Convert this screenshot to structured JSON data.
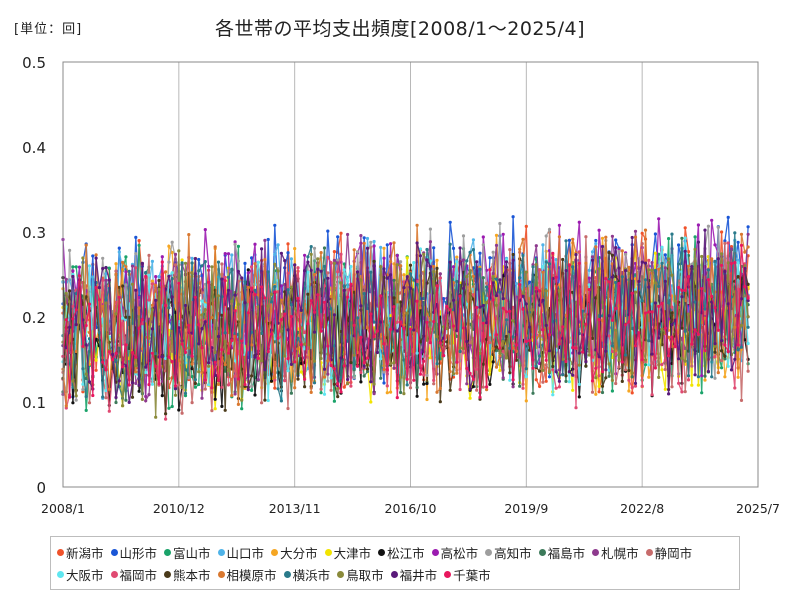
{
  "unit_label": "[単位：回]",
  "chart_data": {
    "type": "line",
    "title": "各世帯の平均支出頻度[2008/1～2025/4]",
    "xlabel": "",
    "ylabel": "",
    "ylim": [
      0,
      0.5
    ],
    "yticks": [
      "0",
      "0.1",
      "0.2",
      "0.3",
      "0.4",
      "0.5"
    ],
    "xticks": [
      "2008/1",
      "2010/12",
      "2013/11",
      "2016/10",
      "2019/9",
      "2022/8",
      "2025/7"
    ],
    "x_start": "2008/1",
    "x_end": "2025/4",
    "grid": "vertical",
    "legend_position": "bottom",
    "series": [
      {
        "name": "新潟市",
        "color": "#f0522a",
        "base": 0.185,
        "spread": 0.08
      },
      {
        "name": "山形市",
        "color": "#1a56d6",
        "base": 0.2,
        "spread": 0.08
      },
      {
        "name": "富山市",
        "color": "#1aa36a",
        "base": 0.18,
        "spread": 0.08
      },
      {
        "name": "山口市",
        "color": "#4fb3e8",
        "base": 0.19,
        "spread": 0.07
      },
      {
        "name": "大分市",
        "color": "#f5a623",
        "base": 0.18,
        "spread": 0.08
      },
      {
        "name": "大津市",
        "color": "#f2e400",
        "base": 0.17,
        "spread": 0.07
      },
      {
        "name": "松江市",
        "color": "#111111",
        "base": 0.16,
        "spread": 0.07
      },
      {
        "name": "高松市",
        "color": "#9b1bb0",
        "base": 0.2,
        "spread": 0.08
      },
      {
        "name": "高知市",
        "color": "#9e9e9e",
        "base": 0.2,
        "spread": 0.08
      },
      {
        "name": "福島市",
        "color": "#3c7a5a",
        "base": 0.18,
        "spread": 0.07
      },
      {
        "name": "札幌市",
        "color": "#8e3a8e",
        "base": 0.19,
        "spread": 0.08
      },
      {
        "name": "静岡市",
        "color": "#c76b6b",
        "base": 0.17,
        "spread": 0.08
      },
      {
        "name": "大阪市",
        "color": "#5ee6f0",
        "base": 0.18,
        "spread": 0.07
      },
      {
        "name": "福岡市",
        "color": "#e04a72",
        "base": 0.17,
        "spread": 0.08
      },
      {
        "name": "熊本市",
        "color": "#4a3a1a",
        "base": 0.17,
        "spread": 0.07
      },
      {
        "name": "相模原市",
        "color": "#d9782f",
        "base": 0.19,
        "spread": 0.08
      },
      {
        "name": "横浜市",
        "color": "#2a7a8a",
        "base": 0.18,
        "spread": 0.07
      },
      {
        "name": "鳥取市",
        "color": "#8a8a3a",
        "base": 0.18,
        "spread": 0.08
      },
      {
        "name": "福井市",
        "color": "#5a1a7a",
        "base": 0.18,
        "spread": 0.08
      },
      {
        "name": "千葉市",
        "color": "#e8175d",
        "base": 0.17,
        "spread": 0.07
      }
    ]
  }
}
